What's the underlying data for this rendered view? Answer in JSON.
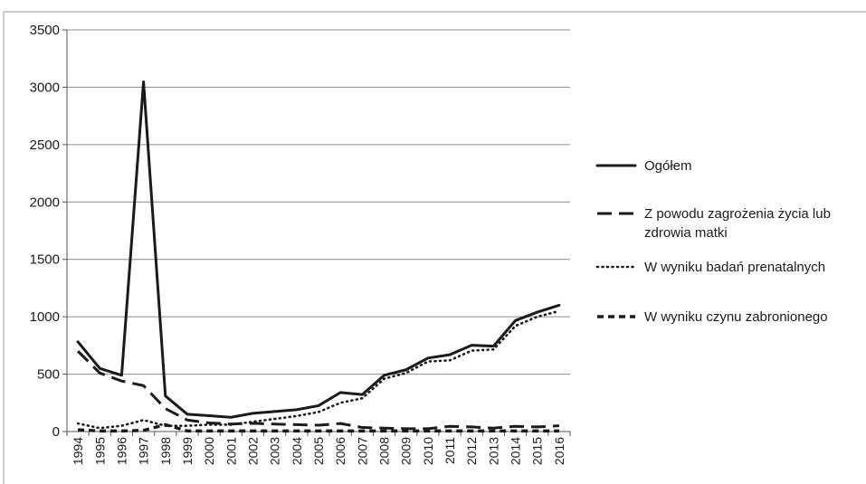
{
  "chart_data": {
    "type": "line",
    "title": "",
    "xlabel": "",
    "ylabel": "",
    "ylim": [
      0,
      3500
    ],
    "yticks": [
      0,
      500,
      1000,
      1500,
      2000,
      2500,
      3000,
      3500
    ],
    "grid": true,
    "legend_position": "right",
    "categories": [
      "1994",
      "1995",
      "1996",
      "1997",
      "1998",
      "1999",
      "2000",
      "2001",
      "2002",
      "2003",
      "2004",
      "2005",
      "2006",
      "2007",
      "2008",
      "2009",
      "2010",
      "2011",
      "2012",
      "2013",
      "2014",
      "2015",
      "2016"
    ],
    "series": [
      {
        "name": "Ogółem",
        "legend_lines": [
          "Ogółem"
        ],
        "style": "solid",
        "values": [
          782,
          550,
          490,
          3047,
          310,
          151,
          138,
          124,
          159,
          174,
          190,
          225,
          340,
          322,
          490,
          538,
          640,
          669,
          752,
          744,
          967,
          1040,
          1100
        ]
      },
      {
        "name": "Z powodu zagrożenia życia lub zdrowia matki",
        "legend_lines": [
          "Z powodu zagrożenia życia lub",
          "zdrowia matki"
        ],
        "style": "longdash",
        "values": [
          700,
          510,
          440,
          400,
          200,
          100,
          75,
          65,
          72,
          65,
          60,
          55,
          70,
          35,
          30,
          25,
          25,
          45,
          40,
          30,
          45,
          40,
          50
        ]
      },
      {
        "name": "W wyniku badań prenatalnych",
        "legend_lines": [
          "W wyniku badań prenatalnych"
        ],
        "style": "dotted",
        "values": [
          70,
          30,
          50,
          100,
          50,
          50,
          60,
          60,
          85,
          110,
          135,
          170,
          250,
          290,
          460,
          510,
          610,
          620,
          705,
          715,
          920,
          1000,
          1050
        ]
      },
      {
        "name": "W wyniku czynu zabronionego",
        "legend_lines": [
          "W wyniku czynu zabronionego"
        ],
        "style": "shortdash",
        "values": [
          15,
          5,
          5,
          10,
          60,
          5,
          5,
          5,
          5,
          5,
          5,
          5,
          5,
          5,
          5,
          5,
          5,
          5,
          5,
          5,
          5,
          5,
          5
        ]
      }
    ]
  }
}
